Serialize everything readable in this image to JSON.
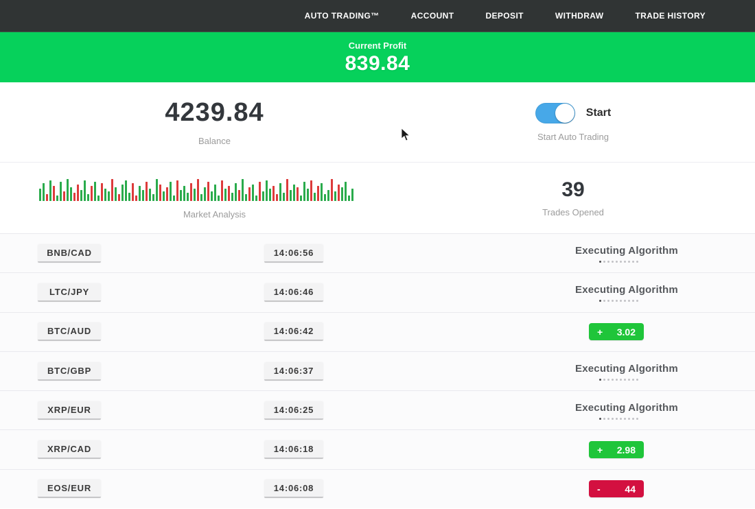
{
  "nav": {
    "items": [
      {
        "label": "AUTO TRADING™"
      },
      {
        "label": "ACCOUNT"
      },
      {
        "label": "DEPOSIT"
      },
      {
        "label": "WITHDRAW"
      },
      {
        "label": "TRADE HISTORY"
      }
    ]
  },
  "profit_banner": {
    "label": "Current Profit",
    "value": "839.84"
  },
  "stats": {
    "balance": {
      "value": "4239.84",
      "label": "Balance"
    },
    "auto_trading": {
      "toggle_label": "Start",
      "label": "Start Auto Trading",
      "enabled": true
    },
    "market_analysis": {
      "label": "Market Analysis"
    },
    "trades_opened": {
      "value": "39",
      "label": "Trades Opened"
    }
  },
  "chart_data": {
    "type": "bar",
    "title": "Market Analysis",
    "xlabel": "",
    "ylabel": "",
    "legend": false,
    "grid": false,
    "note": "decorative candlestick-style strip of green/red bars, no axes or tick labels visible",
    "bar_colors": {
      "g": "#2aab4c",
      "r": "#dd3b3b"
    },
    "heights": [
      18,
      26,
      10,
      30,
      22,
      8,
      28,
      14,
      32,
      20,
      12,
      24,
      16,
      30,
      10,
      22,
      28,
      8,
      26,
      18,
      14,
      32,
      20,
      10,
      24,
      30,
      12,
      26,
      8,
      22,
      16,
      28,
      18,
      10,
      32,
      24,
      14,
      20,
      28,
      8,
      30,
      16,
      22,
      12,
      26,
      18,
      32,
      10,
      20,
      28,
      14,
      24,
      8,
      30,
      18,
      22,
      12,
      26,
      16,
      32,
      10,
      20,
      24,
      8,
      28,
      14,
      30,
      18,
      22,
      10,
      26,
      12,
      32,
      16,
      24,
      20,
      8,
      28,
      18,
      30,
      12,
      22,
      26,
      10,
      16,
      32,
      14,
      24,
      20,
      28,
      8,
      18
    ],
    "colors": [
      "g",
      "g",
      "r",
      "g",
      "r",
      "g",
      "g",
      "r",
      "g",
      "g",
      "r",
      "r",
      "g",
      "g",
      "g",
      "r",
      "g",
      "g",
      "r",
      "g",
      "g",
      "r",
      "g",
      "r",
      "g",
      "g",
      "g",
      "r",
      "r",
      "g",
      "g",
      "r",
      "g",
      "g",
      "g",
      "r",
      "g",
      "r",
      "g",
      "g",
      "r",
      "g",
      "g",
      "g",
      "r",
      "g",
      "r",
      "g",
      "g",
      "r",
      "g",
      "g",
      "g",
      "r",
      "g",
      "r",
      "g",
      "g",
      "r",
      "g",
      "g",
      "r",
      "g",
      "g",
      "r",
      "g",
      "g",
      "g",
      "r",
      "r",
      "g",
      "g",
      "r",
      "g",
      "g",
      "r",
      "g",
      "g",
      "g",
      "r",
      "g",
      "r",
      "g",
      "g",
      "g",
      "r",
      "g",
      "r",
      "g",
      "g",
      "g",
      "g"
    ]
  },
  "trades": {
    "executing_label": "Executing Algorithm",
    "progress_dots": 10,
    "rows": [
      {
        "pair": "BNB/CAD",
        "time": "14:06:56",
        "status": "executing"
      },
      {
        "pair": "LTC/JPY",
        "time": "14:06:46",
        "status": "executing"
      },
      {
        "pair": "BTC/AUD",
        "time": "14:06:42",
        "status": "profit",
        "sign": "+",
        "value": "3.02"
      },
      {
        "pair": "BTC/GBP",
        "time": "14:06:37",
        "status": "executing"
      },
      {
        "pair": "XRP/EUR",
        "time": "14:06:25",
        "status": "executing"
      },
      {
        "pair": "XRP/CAD",
        "time": "14:06:18",
        "status": "profit",
        "sign": "+",
        "value": "2.98"
      },
      {
        "pair": "EOS/EUR",
        "time": "14:06:08",
        "status": "loss",
        "sign": "-",
        "value": "44"
      }
    ]
  },
  "colors": {
    "nav_bg": "#303434",
    "banner_green": "#06d15b",
    "badge_green": "#1fc53a",
    "badge_red": "#d31040",
    "toggle_blue": "#47a8e8"
  }
}
